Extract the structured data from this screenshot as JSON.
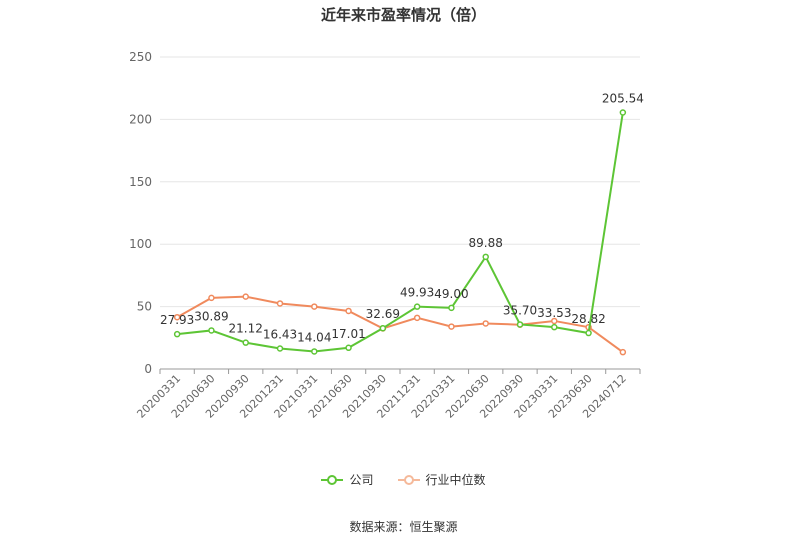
{
  "title": "近年来市盈率情况（倍）",
  "source": "数据来源：恒生聚源",
  "chart_data": {
    "type": "line",
    "categories": [
      "20200331",
      "20200630",
      "20200930",
      "20201231",
      "20210331",
      "20210630",
      "20210930",
      "20211231",
      "20220331",
      "20220630",
      "20220930",
      "20230331",
      "20230630",
      "20240712"
    ],
    "ylim": [
      0,
      250
    ],
    "yticks": [
      0,
      50,
      100,
      150,
      200,
      250
    ],
    "grid": true,
    "legend_position": "bottom",
    "series": [
      {
        "name": "公司",
        "color": "#5dc535",
        "values": [
          27.93,
          30.89,
          21.12,
          16.43,
          14.04,
          17.01,
          32.69,
          49.93,
          49.0,
          89.88,
          35.7,
          33.53,
          28.82,
          205.54
        ],
        "labels": [
          "27.93",
          "30.89",
          "21.12",
          "16.43",
          "14.04",
          "17.01",
          "32.69",
          "49.93",
          "49.00",
          "89.88",
          "35.70",
          "33.53",
          "28.82",
          "205.54"
        ]
      },
      {
        "name": "行业中位数",
        "color": "#f08a5d",
        "values": [
          41.5,
          57.0,
          58.0,
          52.5,
          50.0,
          46.5,
          32.5,
          41.0,
          34.0,
          36.5,
          35.5,
          38.5,
          33.5,
          13.5
        ]
      }
    ]
  }
}
